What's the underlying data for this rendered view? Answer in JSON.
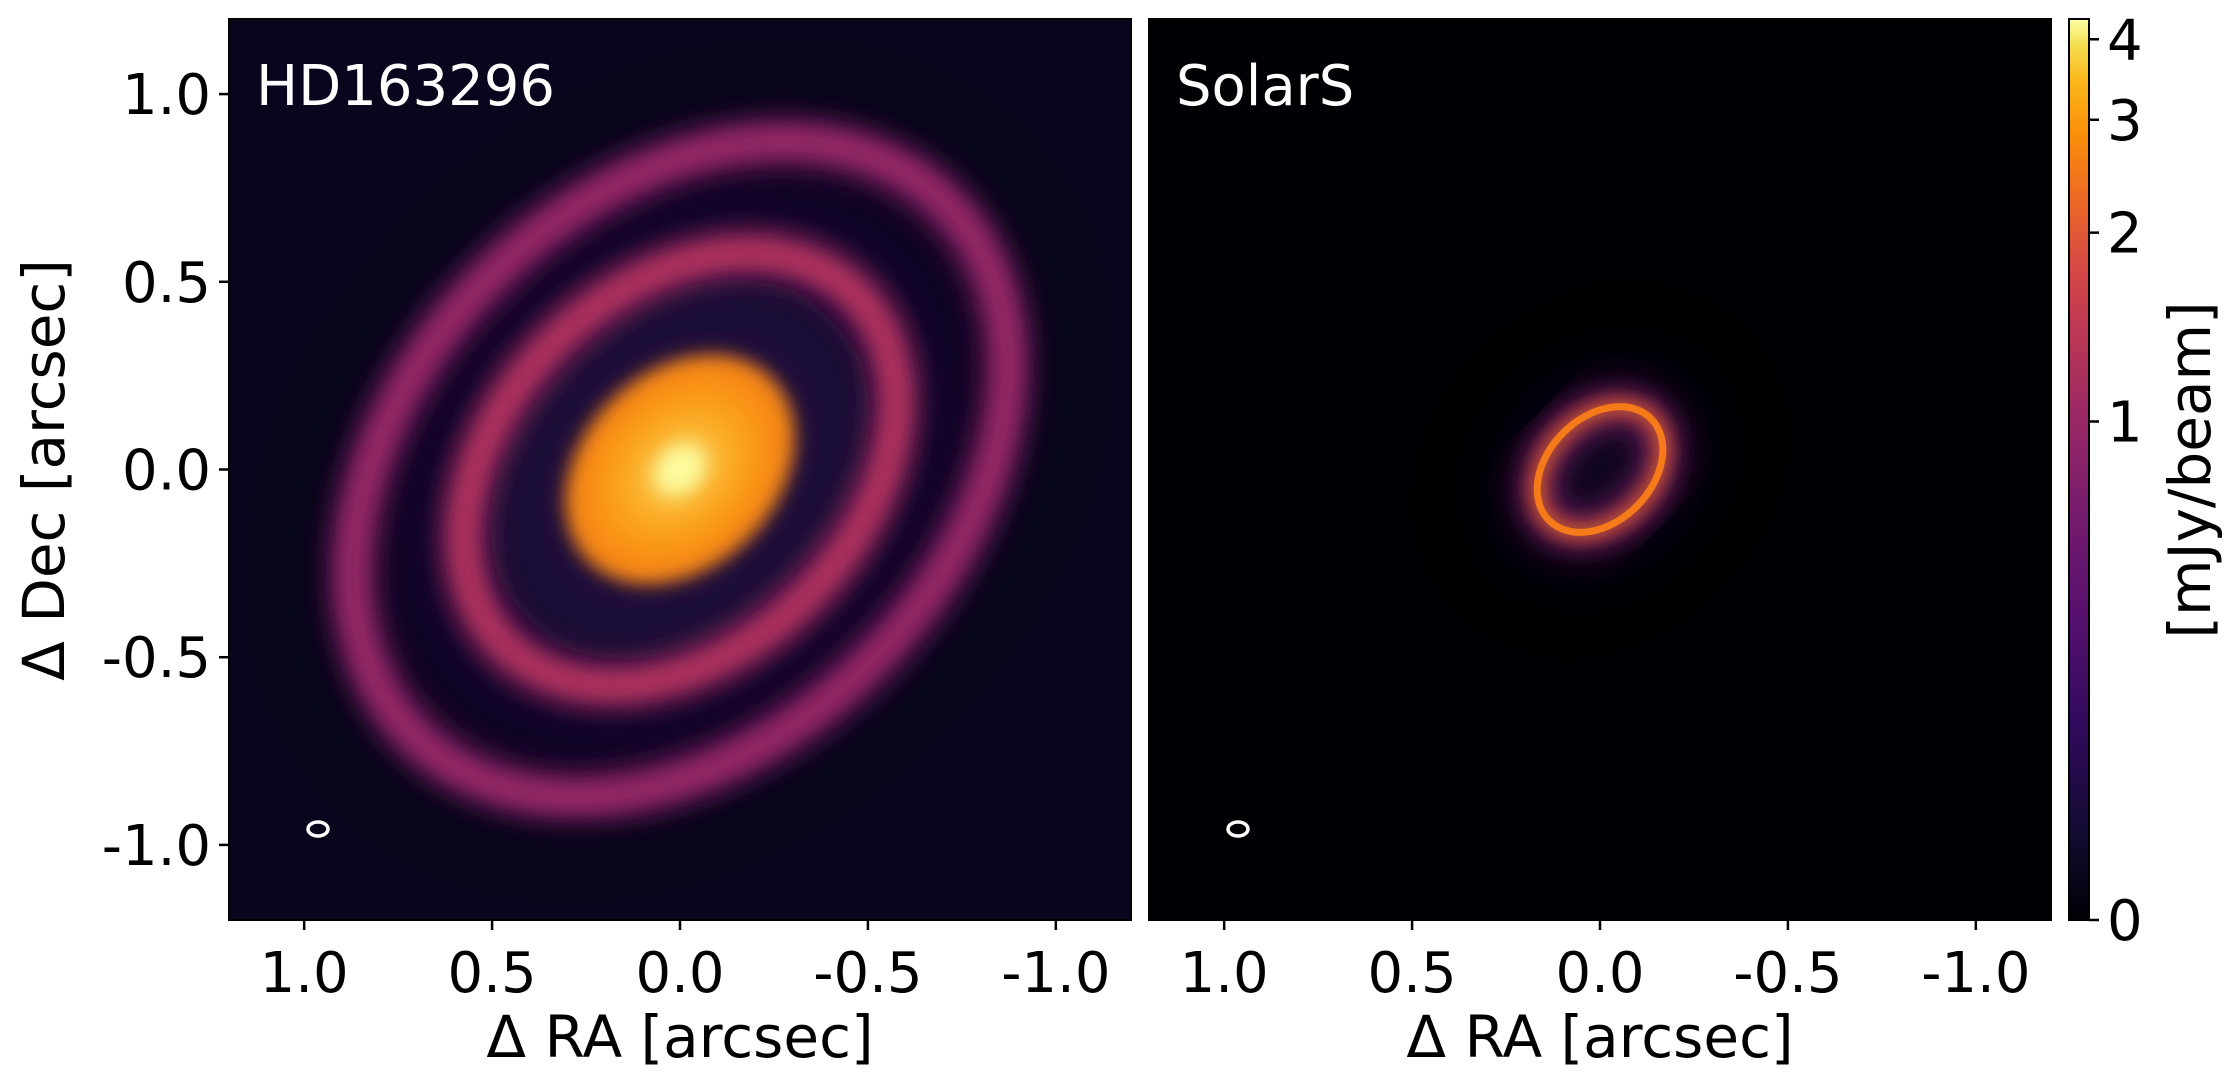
{
  "chart_data": {
    "type": "heatmap",
    "colormap": "inferno",
    "panels": [
      {
        "title": "HD163296",
        "xlabel": "Δ RA [arcsec]",
        "ylabel": "Δ Dec [arcsec]",
        "xlim": [
          1.2,
          -1.2
        ],
        "ylim": [
          -1.2,
          1.2
        ],
        "xticks": [
          1.0,
          0.5,
          0.0,
          -0.5,
          -1.0
        ],
        "xtick_labels": [
          "1.0",
          "0.5",
          "0.0",
          "-0.5",
          "-1.0"
        ],
        "yticks": [
          1.0,
          0.5,
          0.0,
          -0.5,
          -1.0
        ],
        "ytick_labels": [
          "1.0",
          "0.5",
          "0.0",
          "-0.5",
          "-1.0"
        ],
        "inclination_axis_ratio": 0.72,
        "position_angle_deg": 45,
        "components": [
          {
            "name": "core",
            "radius_arcsec": 0.34,
            "peak_mJy_per_beam": 4.2
          },
          {
            "name": "ring-1",
            "radius_arcsec": 0.66,
            "width_arcsec": 0.09,
            "peak_mJy_per_beam": 1.0
          },
          {
            "name": "ring-2",
            "radius_arcsec": 1.0,
            "width_arcsec": 0.1,
            "peak_mJy_per_beam": 0.7
          }
        ],
        "beam": {
          "x": 0.96,
          "y": -0.96
        }
      },
      {
        "title": "SolarS",
        "xlabel": "Δ RA [arcsec]",
        "ylabel": "",
        "xlim": [
          1.2,
          -1.2
        ],
        "ylim": [
          -1.2,
          1.2
        ],
        "xticks": [
          1.0,
          0.5,
          0.0,
          -0.5,
          -1.0
        ],
        "xtick_labels": [
          "1.0",
          "0.5",
          "0.0",
          "-0.5",
          "-1.0"
        ],
        "yticks": [],
        "ytick_labels": [],
        "inclination_axis_ratio": 0.72,
        "position_angle_deg": 45,
        "components": [
          {
            "name": "ring",
            "radius_arcsec": 0.19,
            "width_arcsec": 0.04,
            "peak_mJy_per_beam": 2.0
          }
        ],
        "beam": {
          "x": 0.96,
          "y": -0.96
        }
      }
    ],
    "colorbar": {
      "label": "[mJy/beam]",
      "ticks": [
        0,
        1,
        2,
        3,
        4
      ],
      "tick_labels": [
        "0",
        "1",
        "2",
        "3",
        "4"
      ],
      "range": [
        0,
        4.3
      ],
      "scale": "asinh"
    }
  }
}
